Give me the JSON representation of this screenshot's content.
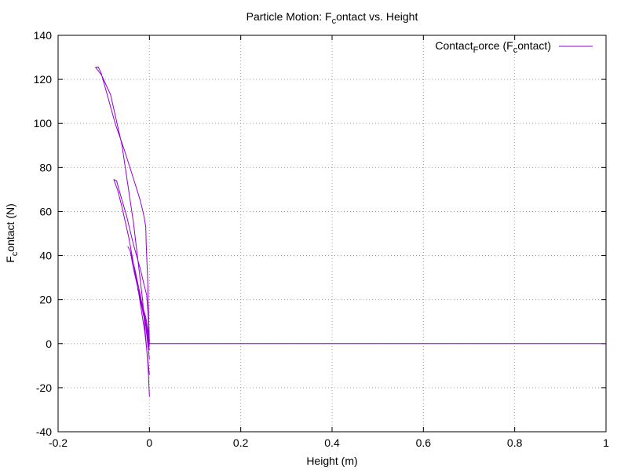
{
  "chart_data": {
    "type": "line",
    "title": {
      "main": "Particle Motion: F",
      "sub": "c",
      "tail": "ontact vs. Height"
    },
    "xlabel": "Height (m)",
    "ylabel": {
      "main": "F",
      "sub": "c",
      "tail": "ontact (N)"
    },
    "xlim": [
      -0.2,
      1
    ],
    "ylim": [
      -40,
      140
    ],
    "x_ticks": [
      -0.2,
      0,
      0.2,
      0.4,
      0.6,
      0.8,
      1
    ],
    "x_tick_labels": [
      "-0.2",
      "0",
      "0.2",
      "0.4",
      "0.6",
      "0.8",
      "1"
    ],
    "y_ticks": [
      -40,
      -20,
      0,
      20,
      40,
      60,
      80,
      100,
      120,
      140
    ],
    "y_tick_labels": [
      "-40",
      "-20",
      "0",
      "20",
      "40",
      "60",
      "80",
      "100",
      "120",
      "140"
    ],
    "grid": true,
    "legend_position": "top-right",
    "series": [
      {
        "name": {
          "a": "Contact",
          "a_sub": "F",
          "b": "orce (F",
          "b_sub": "c",
          "c": "ontact)"
        },
        "color": "#9400d3",
        "segments": [
          [
            [
              0,
              -24
            ],
            [
              -0.003,
              -10
            ],
            [
              -0.015,
              20
            ],
            [
              -0.035,
              55
            ],
            [
              -0.06,
              90
            ],
            [
              -0.085,
              113
            ],
            [
              -0.105,
              122
            ],
            [
              -0.118,
              125.5
            ],
            [
              -0.112,
              125.6
            ],
            [
              -0.106,
              123
            ],
            [
              -0.095,
              115
            ],
            [
              -0.075,
              100
            ],
            [
              -0.055,
              88
            ],
            [
              -0.035,
              75
            ],
            [
              -0.02,
              65
            ],
            [
              -0.012,
              58
            ],
            [
              -0.008,
              53
            ],
            [
              -0.007,
              45
            ],
            [
              -0.004,
              30
            ],
            [
              -0.002,
              15
            ],
            [
              0,
              0
            ]
          ],
          [
            [
              0,
              -14
            ],
            [
              -0.01,
              5
            ],
            [
              -0.025,
              25
            ],
            [
              -0.045,
              48
            ],
            [
              -0.06,
              62
            ],
            [
              -0.07,
              70
            ],
            [
              -0.078,
              74.5
            ],
            [
              -0.072,
              74
            ],
            [
              -0.064,
              68
            ],
            [
              -0.05,
              58
            ],
            [
              -0.035,
              45
            ],
            [
              -0.02,
              34
            ],
            [
              -0.012,
              27
            ],
            [
              -0.006,
              22
            ],
            [
              -0.003,
              14
            ],
            [
              0,
              0
            ]
          ],
          [
            [
              0,
              -7
            ],
            [
              -0.008,
              8
            ],
            [
              -0.02,
              22
            ],
            [
              -0.032,
              34
            ],
            [
              -0.042,
              42
            ],
            [
              -0.047,
              44
            ],
            [
              -0.042,
              42
            ],
            [
              -0.035,
              34
            ],
            [
              -0.025,
              25
            ],
            [
              -0.015,
              17
            ],
            [
              -0.008,
              12
            ],
            [
              -0.003,
              6
            ],
            [
              0,
              0
            ]
          ],
          [
            [
              0,
              -3
            ],
            [
              -0.006,
              6
            ],
            [
              -0.014,
              14
            ],
            [
              -0.022,
              22
            ],
            [
              -0.026,
              25
            ],
            [
              -0.022,
              24
            ],
            [
              -0.016,
              18
            ],
            [
              -0.01,
              12
            ],
            [
              -0.005,
              7
            ],
            [
              0,
              0
            ]
          ],
          [
            [
              0,
              -1
            ],
            [
              -0.004,
              4
            ],
            [
              -0.01,
              10
            ],
            [
              -0.014,
              14
            ],
            [
              -0.01,
              12
            ],
            [
              -0.005,
              6
            ],
            [
              0,
              0
            ]
          ],
          [
            [
              0,
              0
            ],
            [
              1,
              0
            ]
          ]
        ]
      }
    ]
  }
}
